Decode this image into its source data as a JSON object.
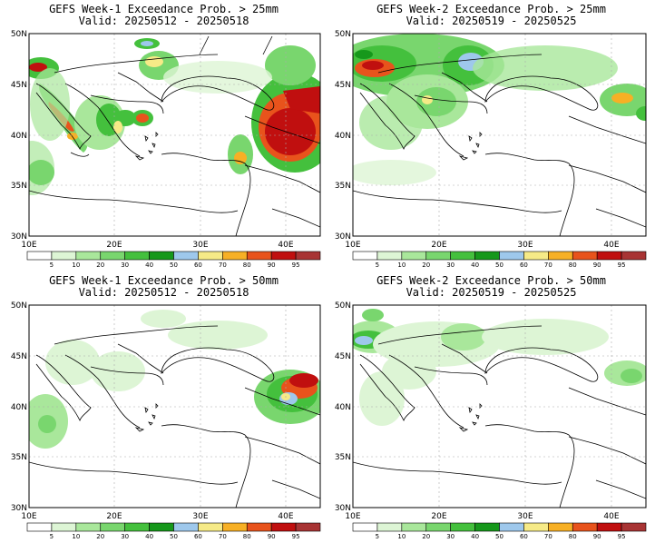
{
  "panels": [
    {
      "title": "GEFS Week-1 Exceedance Prob. > 25mm",
      "valid": "Valid: 20250512 - 20250518"
    },
    {
      "title": "GEFS Week-2 Exceedance Prob. > 25mm",
      "valid": "Valid: 20250519 - 20250525"
    },
    {
      "title": "GEFS Week-1 Exceedance Prob. > 50mm",
      "valid": "Valid: 20250512 - 20250518"
    },
    {
      "title": "GEFS Week-2 Exceedance Prob. > 50mm",
      "valid": "Valid: 20250519 - 20250525"
    }
  ],
  "lat_labels": [
    "50N",
    "45N",
    "40N",
    "35N",
    "30N"
  ],
  "lon_labels": [
    "10E",
    "20E",
    "30E",
    "40E"
  ],
  "lat_values": [
    50,
    45,
    40,
    35,
    30
  ],
  "lon_values": [
    10,
    20,
    30,
    40
  ],
  "colorbar": {
    "levels": [
      "5",
      "10",
      "20",
      "30",
      "40",
      "50",
      "60",
      "70",
      "80",
      "90",
      "95"
    ],
    "colors": [
      "#ffffff",
      "#ddf5d5",
      "#a9e79b",
      "#79d66e",
      "#44c03d",
      "#16981b",
      "#9ec8ec",
      "#f6ea87",
      "#f7b025",
      "#e8531c",
      "#c00f0f",
      "#a83434"
    ]
  },
  "map": {
    "lon_range": [
      10,
      44
    ],
    "lat_range": [
      30,
      50
    ]
  }
}
